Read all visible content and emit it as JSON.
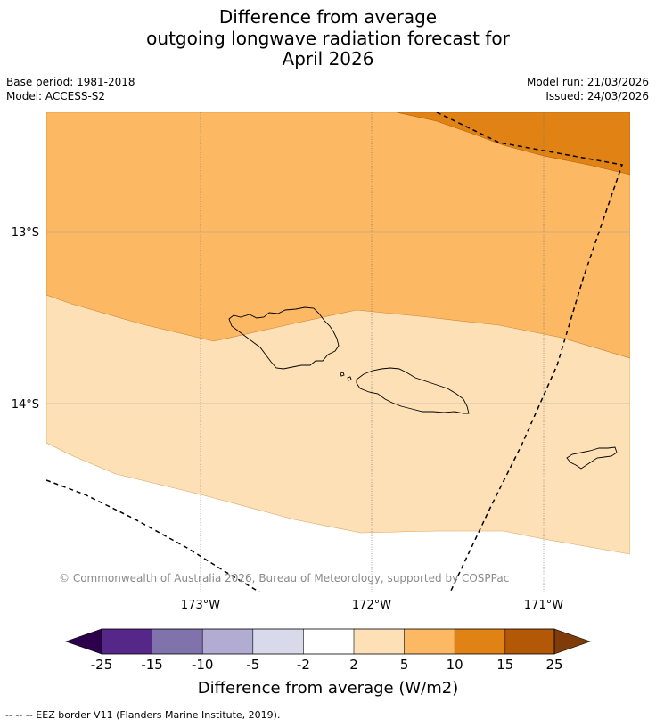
{
  "title": {
    "line1": "Difference from average",
    "line2": "outgoing longwave radiation forecast for",
    "line3": "April 2026"
  },
  "info_left": {
    "base_period": "Base period: 1981-2018",
    "model": "Model: ACCESS-S2"
  },
  "info_right": {
    "model_run": "Model run: 21/03/2026",
    "issued": "Issued: 24/03/2026"
  },
  "map": {
    "lat_labels": [
      "13°S",
      "14°S"
    ],
    "lon_labels": [
      "173°W",
      "172°W",
      "171°W"
    ],
    "copyright": "© Commonwealth of Australia 2026, Bureau of Meteorology, supported by COSPPac"
  },
  "colorbar": {
    "title": "Difference from average (W/m2)",
    "labels": [
      "-25",
      "-15",
      "-10",
      "-5",
      "-2",
      "2",
      "5",
      "10",
      "15",
      "25"
    ],
    "colors": {
      "under": "#2d004b",
      "bins": [
        "#542788",
        "#8073ac",
        "#b2abd2",
        "#d8daeb",
        "#ffffff",
        "#fee0b6",
        "#fdb863",
        "#e08214",
        "#b35806"
      ],
      "over": "#7f3b08"
    }
  },
  "footer": {
    "legend": "--  --  -- EEZ border V11 (Flanders Marine Institute, 2019)."
  }
}
